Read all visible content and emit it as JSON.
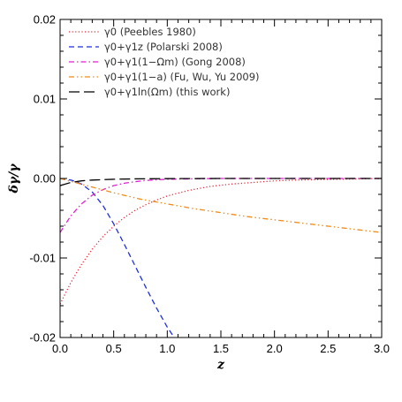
{
  "chart_data": {
    "type": "line",
    "xlabel": "z",
    "ylabel": "δγ/γ",
    "xlim": [
      0.0,
      3.0
    ],
    "ylim": [
      -0.02,
      0.02
    ],
    "xticks": [
      "0.0",
      "0.5",
      "1.0",
      "1.5",
      "2.0",
      "2.5",
      "3.0"
    ],
    "yticks": [
      "-0.02",
      "-0.01",
      "0.00",
      "0.01",
      "0.02"
    ],
    "grid": false,
    "legend_position": "top-left",
    "series": [
      {
        "name": "γ0 (Peebles 1980)",
        "color": "#e8283c",
        "style": "dotted",
        "x": [
          0.0,
          0.1,
          0.2,
          0.3,
          0.4,
          0.5,
          0.6,
          0.7,
          0.8,
          0.9,
          1.0,
          1.2,
          1.4,
          1.6,
          1.8,
          2.0,
          2.2,
          2.4,
          2.6,
          2.8,
          3.0
        ],
        "y": [
          -0.0158,
          -0.0131,
          -0.0108,
          -0.0089,
          -0.0073,
          -0.006,
          -0.0049,
          -0.004,
          -0.0033,
          -0.0027,
          -0.0022,
          -0.0015,
          -0.001,
          -0.0007,
          -0.0005,
          -0.0003,
          -0.0002,
          -0.00015,
          -0.0001,
          -5e-05,
          0.0
        ]
      },
      {
        "name": "γ0+γ1z (Polarski 2008)",
        "color": "#1f2fe0",
        "style": "dashed",
        "x": [
          0.0,
          0.05,
          0.1,
          0.15,
          0.2,
          0.3,
          0.4,
          0.5,
          0.6,
          0.7,
          0.8,
          0.9,
          1.0,
          1.1
        ],
        "y": [
          0.0,
          -0.0001,
          -0.0002,
          -0.0004,
          -0.0007,
          -0.0017,
          -0.0034,
          -0.0057,
          -0.0083,
          -0.011,
          -0.0137,
          -0.0163,
          -0.0187,
          -0.0207
        ]
      },
      {
        "name": "γ0+γ1(1−Ωm) (Gong 2008)",
        "color": "#e020d0",
        "style": "dash-dot",
        "x": [
          0.0,
          0.1,
          0.2,
          0.3,
          0.4,
          0.5,
          0.6,
          0.7,
          0.8,
          1.0,
          1.2,
          1.5,
          2.0,
          2.5,
          3.0
        ],
        "y": [
          -0.0068,
          -0.0047,
          -0.0032,
          -0.0021,
          -0.0014,
          -0.0009,
          -0.0006,
          -0.0004,
          -0.00025,
          -0.0001,
          -5e-05,
          0.0,
          0.0,
          0.0,
          0.0
        ]
      },
      {
        "name": "γ0+γ1(1−a) (Fu, Wu, Yu 2009)",
        "color": "#f08a18",
        "style": "dash-dot-dot",
        "x": [
          0.0,
          0.25,
          0.5,
          0.75,
          1.0,
          1.25,
          1.5,
          1.75,
          2.0,
          2.25,
          2.5,
          2.75,
          3.0
        ],
        "y": [
          0.0,
          -0.0009,
          -0.0018,
          -0.0026,
          -0.0032,
          -0.0038,
          -0.0043,
          -0.0048,
          -0.0052,
          -0.0056,
          -0.006,
          -0.0064,
          -0.0068
        ]
      },
      {
        "name": "γ0+γ1ln(Ωm) (this work)",
        "color": "#000000",
        "style": "long-dash",
        "x": [
          0.0,
          0.1,
          0.2,
          0.3,
          0.5,
          0.7,
          1.0,
          1.5,
          2.0,
          2.5,
          3.0
        ],
        "y": [
          -0.0009,
          -0.0005,
          -0.0003,
          -0.0002,
          -0.0001,
          -5e-05,
          -2e-05,
          0.0,
          0.0,
          0.0,
          0.0
        ]
      }
    ]
  }
}
